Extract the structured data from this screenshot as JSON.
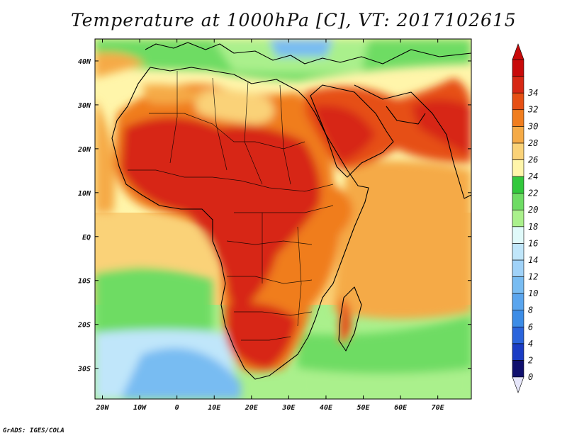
{
  "title": "Temperature at 1000hPa [C], VT: 2017102615",
  "credit": "GrADS: IGES/COLA",
  "map": {
    "projection": "latlon",
    "lon_range": [
      -22,
      79
    ],
    "lat_range": [
      -37,
      45
    ],
    "lon_ticks": [
      {
        "value": -20,
        "label": "20W"
      },
      {
        "value": -10,
        "label": "10W"
      },
      {
        "value": 0,
        "label": "0"
      },
      {
        "value": 10,
        "label": "10E"
      },
      {
        "value": 20,
        "label": "20E"
      },
      {
        "value": 30,
        "label": "30E"
      },
      {
        "value": 40,
        "label": "40E"
      },
      {
        "value": 50,
        "label": "50E"
      },
      {
        "value": 60,
        "label": "60E"
      },
      {
        "value": 70,
        "label": "70E"
      }
    ],
    "lat_ticks": [
      {
        "value": 40,
        "label": "40N"
      },
      {
        "value": 30,
        "label": "30N"
      },
      {
        "value": 20,
        "label": "20N"
      },
      {
        "value": 10,
        "label": "10N"
      },
      {
        "value": 0,
        "label": "EQ"
      },
      {
        "value": -10,
        "label": "10S"
      },
      {
        "value": -20,
        "label": "20S"
      },
      {
        "value": -30,
        "label": "30S"
      }
    ]
  },
  "colorbar": {
    "labels": [
      "0",
      "2",
      "4",
      "6",
      "8",
      "10",
      "12",
      "14",
      "16",
      "18",
      "20",
      "22",
      "24",
      "26",
      "28",
      "30",
      "32",
      "34"
    ],
    "colors": [
      "#10106e",
      "#1a3cc4",
      "#2a64dc",
      "#3c8ce6",
      "#5aa5ee",
      "#78bcf2",
      "#a0d2f8",
      "#c0e6fa",
      "#e0fafa",
      "#aaf08c",
      "#6edc64",
      "#32c83c",
      "#fff5aa",
      "#fad278",
      "#f5aa46",
      "#f07d1e",
      "#e65014",
      "#d72814",
      "#c80a0a"
    ],
    "under_color": "#e6e6fa",
    "over_color": "#c80a0a"
  }
}
